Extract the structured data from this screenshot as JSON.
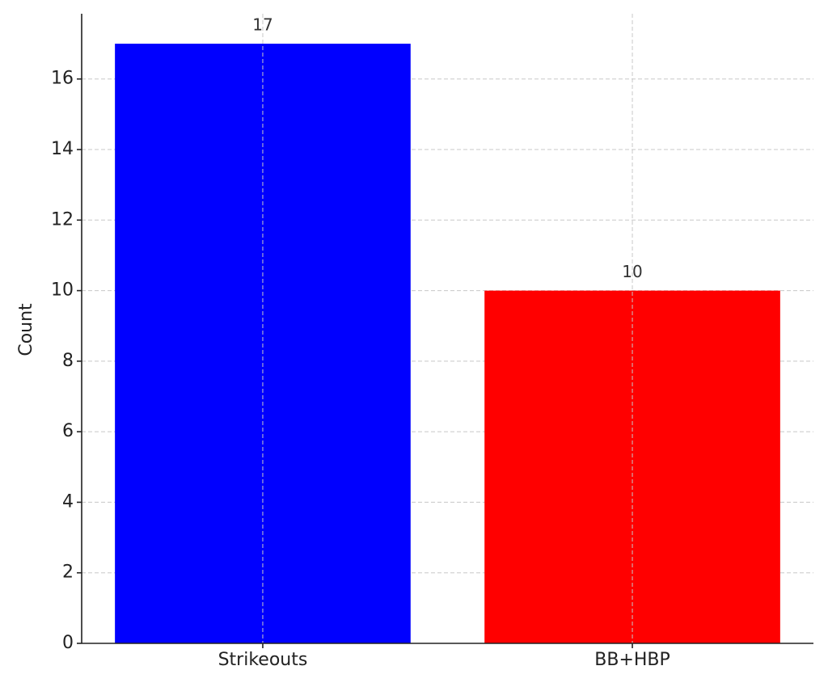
{
  "chart_data": {
    "type": "bar",
    "y_label": "Count",
    "categories": [
      "Strikeouts",
      "BB+HBP"
    ],
    "values": [
      17,
      10
    ],
    "colors": [
      "#0000ff",
      "#ff0000"
    ],
    "ylim": [
      0,
      17.85
    ],
    "yticks": [
      0,
      2,
      4,
      6,
      8,
      10,
      12,
      14,
      16
    ],
    "grid": true
  }
}
